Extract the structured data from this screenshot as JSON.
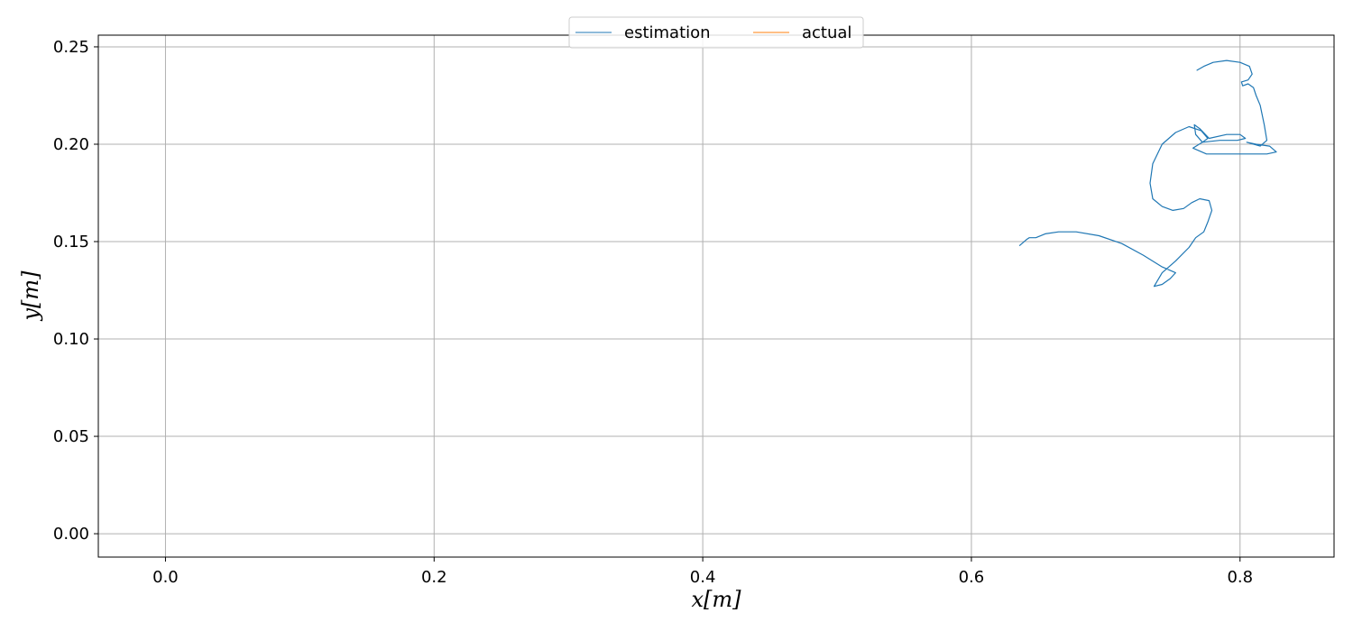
{
  "chart_data": {
    "type": "line",
    "xlabel": "x[m]",
    "ylabel": "y[m]",
    "xlim": [
      -0.05,
      0.87
    ],
    "ylim": [
      -0.012,
      0.256
    ],
    "xticks": [
      0.0,
      0.2,
      0.4,
      0.6,
      0.8
    ],
    "xtick_labels": [
      "0.0",
      "0.2",
      "0.4",
      "0.6",
      "0.8"
    ],
    "yticks": [
      0.0,
      0.05,
      0.1,
      0.15,
      0.2,
      0.25
    ],
    "ytick_labels": [
      "0.00",
      "0.05",
      "0.10",
      "0.15",
      "0.20",
      "0.25"
    ],
    "grid": true,
    "legend": {
      "placement": "upper-center",
      "columns": 2
    },
    "series": [
      {
        "name": "estimation",
        "color": "#1f77b4",
        "points": [
          [
            0.636,
            0.148
          ],
          [
            0.641,
            0.151
          ],
          [
            0.643,
            0.152
          ],
          [
            0.648,
            0.152
          ],
          [
            0.655,
            0.154
          ],
          [
            0.665,
            0.155
          ],
          [
            0.678,
            0.155
          ],
          [
            0.695,
            0.153
          ],
          [
            0.712,
            0.149
          ],
          [
            0.728,
            0.143
          ],
          [
            0.742,
            0.137
          ],
          [
            0.752,
            0.134
          ],
          [
            0.748,
            0.131
          ],
          [
            0.742,
            0.128
          ],
          [
            0.736,
            0.127
          ],
          [
            0.742,
            0.134
          ],
          [
            0.752,
            0.14
          ],
          [
            0.762,
            0.147
          ],
          [
            0.767,
            0.152
          ],
          [
            0.773,
            0.155
          ],
          [
            0.776,
            0.16
          ],
          [
            0.779,
            0.166
          ],
          [
            0.777,
            0.171
          ],
          [
            0.77,
            0.172
          ],
          [
            0.764,
            0.17
          ],
          [
            0.758,
            0.167
          ],
          [
            0.75,
            0.166
          ],
          [
            0.742,
            0.168
          ],
          [
            0.735,
            0.172
          ],
          [
            0.733,
            0.18
          ],
          [
            0.735,
            0.19
          ],
          [
            0.742,
            0.2
          ],
          [
            0.752,
            0.206
          ],
          [
            0.762,
            0.209
          ],
          [
            0.771,
            0.207
          ],
          [
            0.776,
            0.203
          ],
          [
            0.772,
            0.201
          ],
          [
            0.767,
            0.205
          ],
          [
            0.766,
            0.21
          ],
          [
            0.77,
            0.208
          ],
          [
            0.777,
            0.203
          ],
          [
            0.79,
            0.205
          ],
          [
            0.8,
            0.205
          ],
          [
            0.804,
            0.203
          ],
          [
            0.798,
            0.202
          ],
          [
            0.785,
            0.202
          ],
          [
            0.772,
            0.201
          ],
          [
            0.765,
            0.198
          ],
          [
            0.775,
            0.195
          ],
          [
            0.8,
            0.195
          ],
          [
            0.82,
            0.195
          ],
          [
            0.827,
            0.196
          ],
          [
            0.822,
            0.199
          ],
          [
            0.812,
            0.2
          ],
          [
            0.805,
            0.201
          ],
          [
            0.815,
            0.199
          ],
          [
            0.82,
            0.202
          ],
          [
            0.818,
            0.21
          ],
          [
            0.815,
            0.22
          ],
          [
            0.812,
            0.225
          ],
          [
            0.81,
            0.229
          ],
          [
            0.806,
            0.231
          ],
          [
            0.802,
            0.23
          ],
          [
            0.801,
            0.232
          ],
          [
            0.806,
            0.233
          ],
          [
            0.809,
            0.236
          ],
          [
            0.807,
            0.24
          ],
          [
            0.8,
            0.242
          ],
          [
            0.79,
            0.243
          ],
          [
            0.78,
            0.242
          ],
          [
            0.773,
            0.24
          ],
          [
            0.768,
            0.238
          ]
        ]
      },
      {
        "name": "actual",
        "color": "#ff7f0e",
        "points": []
      }
    ]
  }
}
